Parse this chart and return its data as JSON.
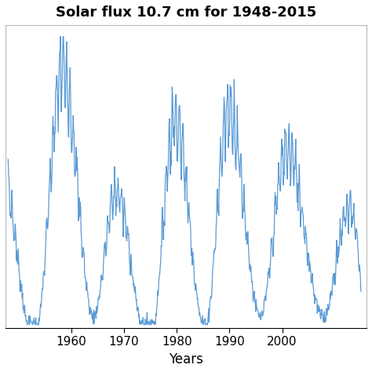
{
  "title": "Solar flux 10.7 cm for 1948-2015",
  "xlabel": "Years",
  "ylabel": "",
  "line_color": "#5b9bd5",
  "line_width": 0.9,
  "xlim": [
    1947.5,
    2016
  ],
  "ylim": [
    55,
    320
  ],
  "xticks": [
    1960,
    1970,
    1980,
    1990,
    2000
  ],
  "background_color": "#ffffff",
  "title_fontsize": 13
}
